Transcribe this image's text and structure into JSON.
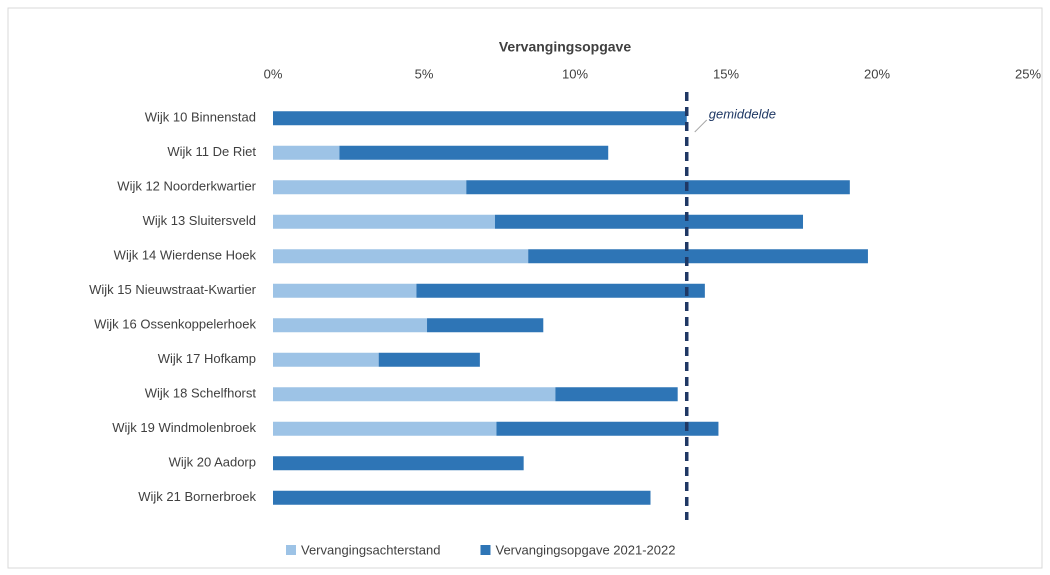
{
  "chart_data": {
    "type": "stacked-bar-horizontal",
    "title": "Vervangingsopgave",
    "categories": [
      "Wijk 10 Binnenstad",
      "Wijk 11 De Riet",
      "Wijk 12 Noorderkwartier",
      "Wijk 13 Sluitersveld",
      "Wijk 14 Wierdense Hoek",
      "Wijk 15 Nieuwstraat-Kwartier",
      "Wijk 16 Ossenkoppelerhoek",
      "Wijk 17 Hofkamp",
      "Wijk 18 Schelfhorst",
      "Wijk 19 Windmolenbroek",
      "Wijk 20 Aadorp",
      "Wijk 21 Bornerbroek"
    ],
    "series": [
      {
        "name": "Vervangingsachterstand",
        "color": "#9dc3e6",
        "values": [
          0,
          2.2,
          6.4,
          7.35,
          8.45,
          4.75,
          5.1,
          3.5,
          9.35,
          7.4,
          0,
          0
        ]
      },
      {
        "name": "Vervangingsopgave 2021-2022",
        "color": "#2e75b6",
        "values": [
          13.7,
          8.9,
          12.7,
          10.2,
          11.25,
          9.55,
          3.85,
          3.35,
          4.05,
          7.35,
          8.3,
          12.5
        ]
      }
    ],
    "xlim": [
      0,
      25
    ],
    "xticks": [
      {
        "value": 0,
        "label": "0%"
      },
      {
        "value": 5,
        "label": "5%"
      },
      {
        "value": 10,
        "label": "10%"
      },
      {
        "value": 15,
        "label": "15%"
      },
      {
        "value": 20,
        "label": "20%"
      },
      {
        "value": 25,
        "label": "25%"
      }
    ],
    "annotation": {
      "value": 13.7,
      "label": "gemiddelde",
      "color": "#1f3864"
    },
    "legend": "bottom"
  }
}
